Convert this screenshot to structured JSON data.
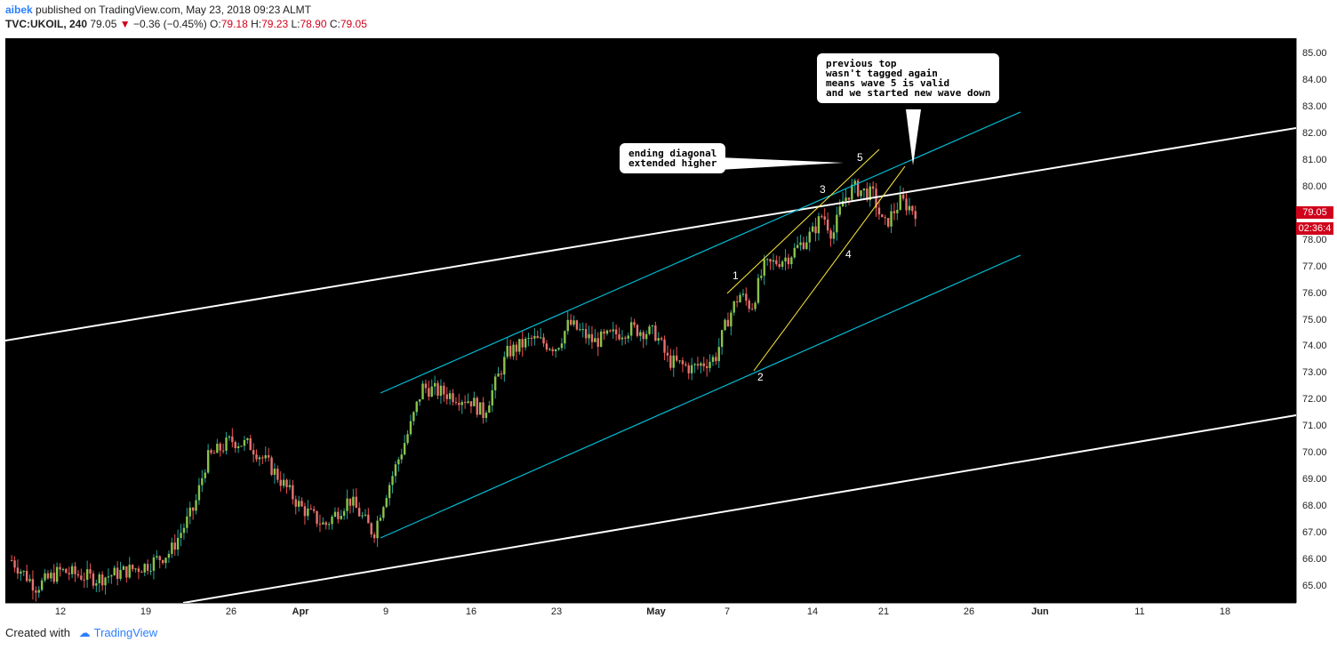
{
  "header": {
    "user": "aibek",
    "published": " published on TradingView.com, May 23, 2018 09:23 ALMT",
    "symbol": "TVC:UKOIL, 240",
    "last": "79.05",
    "change": "−0.36 (−0.45%)",
    "o_label": "O:",
    "o_val": "79.18",
    "h_label": "H:",
    "h_val": "79.23",
    "l_label": "L:",
    "l_val": "78.90",
    "c_label": "C:",
    "c_val": "79.05"
  },
  "footer": {
    "created": "Created with",
    "brand": "TradingView"
  },
  "price_tag": "79.05",
  "countdown": "02:36:4",
  "callouts": {
    "top": "previous top\nwasn't tagged again\nmeans wave 5 is valid\nand we started new wave down",
    "mid": "ending diagonal\nextended higher"
  },
  "waves": [
    "1",
    "2",
    "3",
    "4",
    "5"
  ],
  "colors": {
    "up": "#26a69a",
    "down": "#ef5350",
    "upBody": "#8bc34a",
    "downBody": "#e57373",
    "channel": "#00bcd4",
    "diagonal": "#ffeb3b",
    "trend": "#ffffff"
  },
  "chart_data": {
    "type": "candlestick",
    "title": "",
    "ylim": [
      64.5,
      85.5
    ],
    "y_ticks": [
      "85.00",
      "84.00",
      "83.00",
      "82.00",
      "81.00",
      "80.00",
      "79.00",
      "78.00",
      "77.00",
      "76.00",
      "75.00",
      "74.00",
      "73.00",
      "72.00",
      "71.00",
      "70.00",
      "69.00",
      "68.00",
      "67.00",
      "66.00",
      "65.00"
    ],
    "x_ticks": [
      {
        "label": "12",
        "month": false
      },
      {
        "label": "19",
        "month": false
      },
      {
        "label": "26",
        "month": false
      },
      {
        "label": "Apr",
        "month": true
      },
      {
        "label": "9",
        "month": false
      },
      {
        "label": "16",
        "month": false
      },
      {
        "label": "23",
        "month": false
      },
      {
        "label": "May",
        "month": true
      },
      {
        "label": "7",
        "month": false
      },
      {
        "label": "14",
        "month": false
      },
      {
        "label": "21",
        "month": false
      },
      {
        "label": "26",
        "month": false
      },
      {
        "label": "Jun",
        "month": true
      },
      {
        "label": "11",
        "month": false
      },
      {
        "label": "18",
        "month": false
      }
    ],
    "close_path": [
      [
        "Mar 8",
        66.0
      ],
      [
        "Mar 10",
        65.0
      ],
      [
        "Mar 12",
        65.6
      ],
      [
        "Mar 15",
        65.3
      ],
      [
        "Mar 19",
        65.8
      ],
      [
        "Mar 21",
        66.3
      ],
      [
        "Mar 23",
        68.0
      ],
      [
        "Mar 24",
        69.8
      ],
      [
        "Mar 26",
        70.5
      ],
      [
        "Mar 28",
        70.3
      ],
      [
        "Mar 30",
        69.5
      ],
      [
        "Apr 2",
        68.0
      ],
      [
        "Apr 4",
        67.3
      ],
      [
        "Apr 6",
        68.3
      ],
      [
        "Apr 8",
        67.0
      ],
      [
        "Apr 9",
        68.5
      ],
      [
        "Apr 11",
        71.0
      ],
      [
        "Apr 12",
        72.5
      ],
      [
        "Apr 16",
        72.0
      ],
      [
        "Apr 17",
        71.5
      ],
      [
        "Apr 19",
        73.8
      ],
      [
        "Apr 21",
        74.3
      ],
      [
        "Apr 23",
        74.0
      ],
      [
        "Apr 24",
        74.9
      ],
      [
        "Apr 26",
        74.2
      ],
      [
        "Apr 29",
        74.7
      ],
      [
        "May 1",
        74.5
      ],
      [
        "May 2",
        73.5
      ],
      [
        "May 4",
        73.2
      ],
      [
        "May 6",
        73.6
      ],
      [
        "May 7",
        75.0
      ],
      [
        "May 8",
        76.0
      ],
      [
        "May 9",
        75.5
      ],
      [
        "May 10",
        77.0
      ],
      [
        "May 12",
        77.4
      ],
      [
        "May 14",
        78.3
      ],
      [
        "May 15",
        79.0
      ],
      [
        "May 16",
        78.2
      ],
      [
        "May 17",
        79.5
      ],
      [
        "May 18",
        80.0
      ],
      [
        "May 20",
        79.7
      ],
      [
        "May 21",
        78.5
      ],
      [
        "May 22",
        79.5
      ],
      [
        "May 23",
        79.05
      ]
    ],
    "trend_lines": "white parallel channel, cyan rising channel, yellow ending diagonal"
  }
}
